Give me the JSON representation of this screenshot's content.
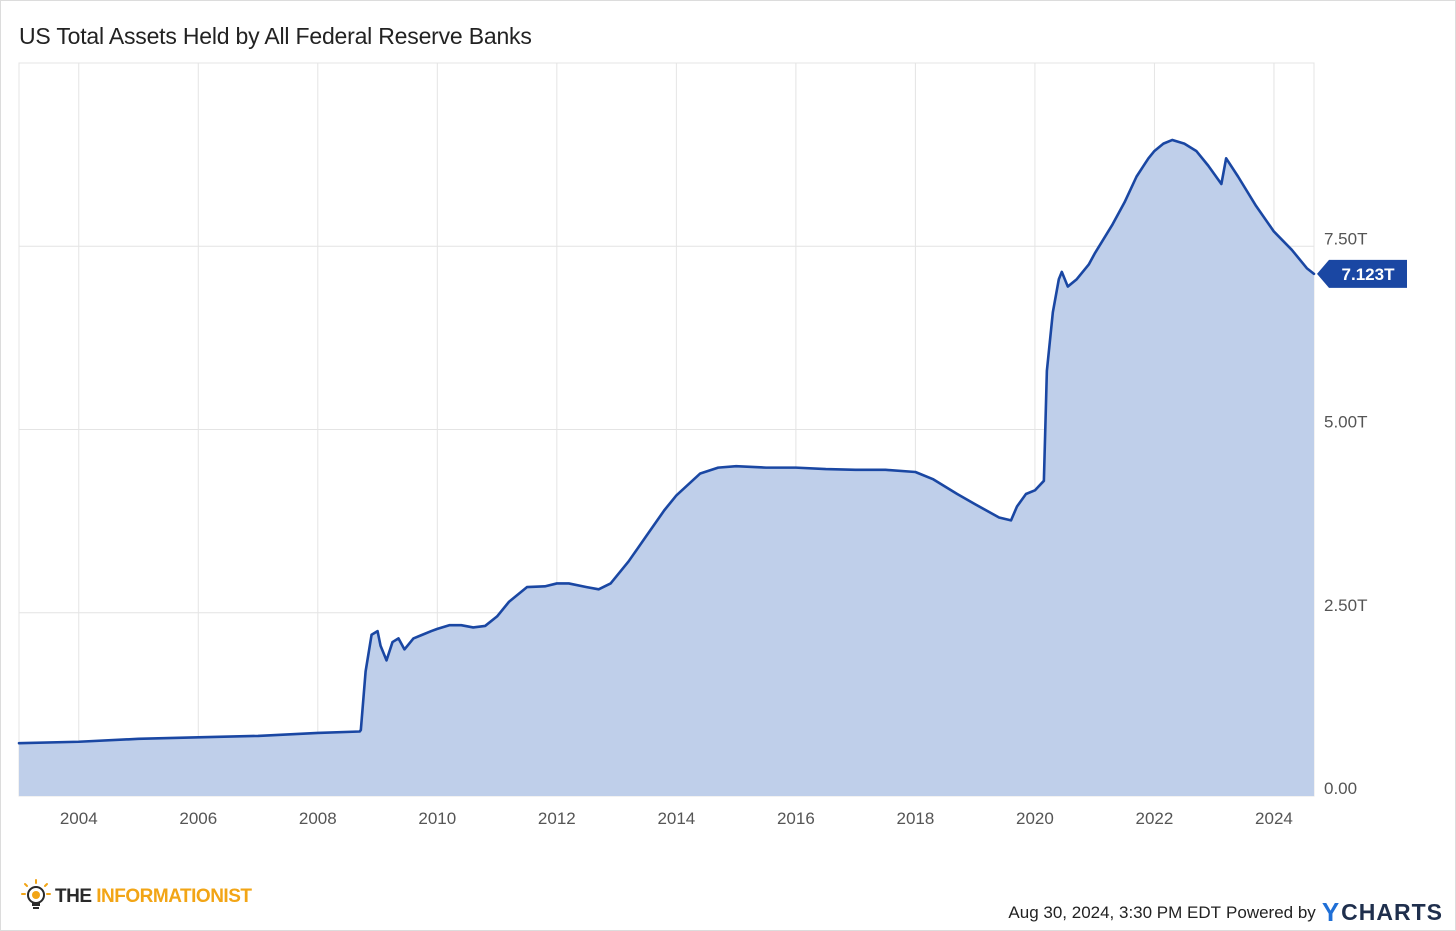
{
  "header": {
    "title": "US Total Assets Held by All Federal Reserve Banks"
  },
  "footer": {
    "timestamp": "Aug 30, 2024, 3:30 PM EDT",
    "powered_by": "Powered by",
    "ycharts_y": "Y",
    "ycharts_rest": "CHARTS"
  },
  "brand": {
    "the": "THE",
    "name": "INFORMATIONIST",
    "icon": "lightbulb-icon"
  },
  "colors": {
    "line": "#1a47a3",
    "area": "#bfcfea",
    "badge": "#1a47a3",
    "grid": "#e4e4e4",
    "brand_accent": "#f2a516",
    "ycharts_accent": "#1f6fd6"
  },
  "chart_data": {
    "type": "area",
    "title": "US Total Assets Held by All Federal Reserve Banks",
    "xlabel": "",
    "ylabel": "",
    "unit": "T",
    "xlim": [
      2003.0,
      2024.67
    ],
    "ylim": [
      0,
      10
    ],
    "x_ticks": [
      2004,
      2006,
      2008,
      2010,
      2012,
      2014,
      2016,
      2018,
      2020,
      2022,
      2024
    ],
    "x_tick_labels": [
      "2004",
      "2006",
      "2008",
      "2010",
      "2012",
      "2014",
      "2016",
      "2018",
      "2020",
      "2022",
      "2024"
    ],
    "y_ticks": [
      0,
      2.5,
      5,
      7.5
    ],
    "y_tick_labels": [
      "0.00",
      "2.50T",
      "5.00T",
      "7.50T"
    ],
    "grid": true,
    "last_value": 7.123,
    "last_value_label": "7.123T",
    "series": [
      {
        "x": [
          2003.0,
          2004.0,
          2005.0,
          2006.0,
          2007.0,
          2008.0,
          2008.7,
          2008.72,
          2008.8,
          2008.9,
          2009.0,
          2009.05,
          2009.15,
          2009.25,
          2009.35,
          2009.45,
          2009.6,
          2009.75,
          2009.9,
          2010.0,
          2010.2,
          2010.4,
          2010.6,
          2010.8,
          2011.0,
          2011.2,
          2011.5,
          2011.8,
          2012.0,
          2012.2,
          2012.5,
          2012.7,
          2012.9,
          2013.2,
          2013.5,
          2013.8,
          2014.0,
          2014.4,
          2014.7,
          2015.0,
          2015.5,
          2016.0,
          2016.5,
          2017.0,
          2017.5,
          2018.0,
          2018.3,
          2018.7,
          2019.0,
          2019.4,
          2019.6,
          2019.7,
          2019.85,
          2020.0,
          2020.15,
          2020.2,
          2020.3,
          2020.4,
          2020.45,
          2020.55,
          2020.7,
          2020.9,
          2021.0,
          2021.3,
          2021.5,
          2021.7,
          2021.9,
          2022.0,
          2022.15,
          2022.3,
          2022.5,
          2022.7,
          2022.9,
          2023.12,
          2023.2,
          2023.4,
          2023.7,
          2024.0,
          2024.3,
          2024.55,
          2024.67
        ],
        "y": [
          0.72,
          0.74,
          0.78,
          0.8,
          0.82,
          0.86,
          0.88,
          0.9,
          1.7,
          2.2,
          2.25,
          2.05,
          1.85,
          2.1,
          2.15,
          2.0,
          2.15,
          2.2,
          2.25,
          2.28,
          2.33,
          2.33,
          2.3,
          2.32,
          2.45,
          2.65,
          2.85,
          2.86,
          2.9,
          2.9,
          2.85,
          2.82,
          2.9,
          3.2,
          3.55,
          3.9,
          4.1,
          4.4,
          4.48,
          4.5,
          4.48,
          4.48,
          4.46,
          4.45,
          4.45,
          4.42,
          4.32,
          4.12,
          3.98,
          3.8,
          3.76,
          3.95,
          4.12,
          4.17,
          4.3,
          5.8,
          6.6,
          7.05,
          7.15,
          6.95,
          7.05,
          7.25,
          7.4,
          7.8,
          8.1,
          8.45,
          8.7,
          8.8,
          8.9,
          8.95,
          8.9,
          8.8,
          8.6,
          8.35,
          8.7,
          8.45,
          8.05,
          7.7,
          7.45,
          7.2,
          7.123
        ]
      }
    ]
  }
}
